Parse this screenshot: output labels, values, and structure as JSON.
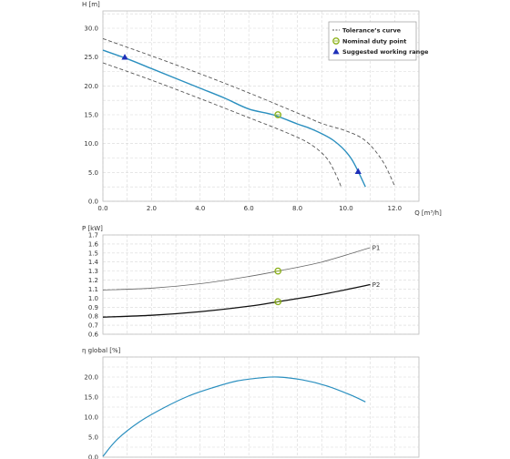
{
  "chart_data": [
    {
      "type": "line",
      "panel": "head",
      "ylabel": "H [m]",
      "xlabel": "Q [m³/h]",
      "xlim": [
        0,
        13
      ],
      "ylim": [
        0,
        33
      ],
      "x_ticks": [
        "0.0",
        "2.0",
        "4.0",
        "6.0",
        "8.0",
        "10.0",
        "12.0"
      ],
      "y_ticks": [
        "0.0",
        "5.0",
        "10.0",
        "15.0",
        "20.0",
        "25.0",
        "30.0"
      ],
      "grid": true,
      "legend_position": "top-right",
      "legend": {
        "tolerance_label": "Tolerance’s curve",
        "duty_label": "Nominal duty point",
        "range_label": "Suggested working range"
      },
      "series": [
        {
          "role": "curve",
          "x": [
            0,
            1,
            2,
            3,
            4,
            5,
            6,
            7,
            8,
            8.6,
            9.5,
            10.2,
            10.8
          ],
          "y": [
            26.2,
            24.7,
            23.0,
            21.3,
            19.6,
            17.9,
            16.0,
            15.0,
            13.4,
            12.5,
            10.5,
            7.5,
            2.5
          ],
          "color": "#2a8fbf"
        },
        {
          "role": "tolerance_upper",
          "x": [
            0,
            2,
            4,
            6,
            8,
            9,
            10,
            10.8,
            11.5,
            12.0
          ],
          "y": [
            28.2,
            25.2,
            22.1,
            18.8,
            15.3,
            13.5,
            12.2,
            10.5,
            7.0,
            2.7
          ],
          "color": "#555555"
        },
        {
          "role": "tolerance_lower",
          "x": [
            0,
            2,
            4,
            6,
            7.5,
            8.5,
            9.2,
            9.6,
            9.8
          ],
          "y": [
            24.0,
            21.0,
            17.8,
            14.5,
            12.0,
            10.0,
            7.5,
            4.5,
            2.5
          ],
          "color": "#555555"
        }
      ],
      "duty_point": {
        "x": 7.2,
        "y": 15.0
      },
      "working_range": [
        {
          "x": 0.9,
          "y": 25.0
        },
        {
          "x": 10.5,
          "y": 5.2
        }
      ]
    },
    {
      "type": "line",
      "panel": "power",
      "ylabel": "P [kW]",
      "xlim": [
        0,
        13
      ],
      "ylim": [
        0.6,
        1.7
      ],
      "y_ticks": [
        "0.6",
        "0.7",
        "0.8",
        "0.9",
        "1.0",
        "1.1",
        "1.2",
        "1.3",
        "1.4",
        "1.5",
        "1.6",
        "1.7"
      ],
      "grid": true,
      "series": [
        {
          "name": "P1",
          "x": [
            0,
            2,
            4,
            6,
            7.2,
            9,
            11
          ],
          "y": [
            1.09,
            1.11,
            1.16,
            1.24,
            1.3,
            1.4,
            1.56
          ],
          "color": "#666666"
        },
        {
          "name": "P2",
          "x": [
            0,
            2,
            4,
            6,
            7.2,
            9,
            11
          ],
          "y": [
            0.79,
            0.81,
            0.85,
            0.91,
            0.96,
            1.04,
            1.15
          ],
          "color": "#111111"
        }
      ],
      "duty_points": [
        {
          "x": 7.2,
          "y": 1.3
        },
        {
          "x": 7.2,
          "y": 0.96
        }
      ]
    },
    {
      "type": "line",
      "panel": "efficiency",
      "ylabel": "η global [%]",
      "xlim": [
        0,
        13
      ],
      "ylim": [
        0,
        25
      ],
      "y_ticks": [
        "0.0",
        "5.0",
        "10.0",
        "15.0",
        "20.0"
      ],
      "grid": true,
      "series": [
        {
          "x": [
            0,
            0.6,
            1.5,
            2.5,
            3.5,
            4.5,
            5.5,
            6.5,
            7.2,
            8.2,
            9.2,
            10.2,
            10.8
          ],
          "y": [
            0.2,
            4.5,
            8.8,
            12.3,
            15.2,
            17.3,
            19.0,
            19.8,
            20.0,
            19.3,
            17.8,
            15.5,
            13.8
          ],
          "color": "#2a8fbf"
        }
      ]
    }
  ]
}
